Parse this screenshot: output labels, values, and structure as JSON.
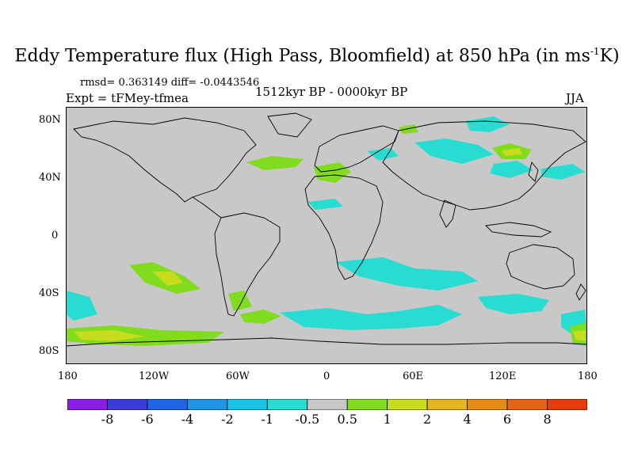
{
  "title": {
    "main": "Eddy Temperature flux (High Pass, Bloomfield) at 850 hPa (in ms",
    "sup": "-1",
    "end": "K)"
  },
  "stats": {
    "rmsd_diff": "rmsd= 0.363149 diff= -0.0443546",
    "expt": "Expt = tFMey-tfmea",
    "period": "1512kyr BP - 0000kyr BP",
    "season": "JJA"
  },
  "axes": {
    "y_ticks": [
      "80N",
      "40N",
      "0",
      "40S",
      "80S"
    ],
    "x_ticks": [
      "180",
      "120W",
      "60W",
      "0",
      "60E",
      "120E",
      "180"
    ]
  },
  "colorbar": {
    "labels": [
      "-8",
      "-6",
      "-4",
      "-2",
      "-1",
      "-0.5",
      "0.5",
      "1",
      "2",
      "4",
      "6",
      "8"
    ],
    "colors": [
      "#8a1ee6",
      "#3c3cdc",
      "#1e64e6",
      "#1e96e6",
      "#19c3e6",
      "#28dcd2",
      "#c8c8c8",
      "#82dc1e",
      "#c8dc1e",
      "#e6b41e",
      "#e68c14",
      "#e66414",
      "#e63c0a"
    ]
  },
  "colors": {
    "background_field": "#c8c8c8",
    "negative_small": "#28dcd2",
    "positive_small": "#82dc1e",
    "positive_medium": "#c8dc1e"
  }
}
